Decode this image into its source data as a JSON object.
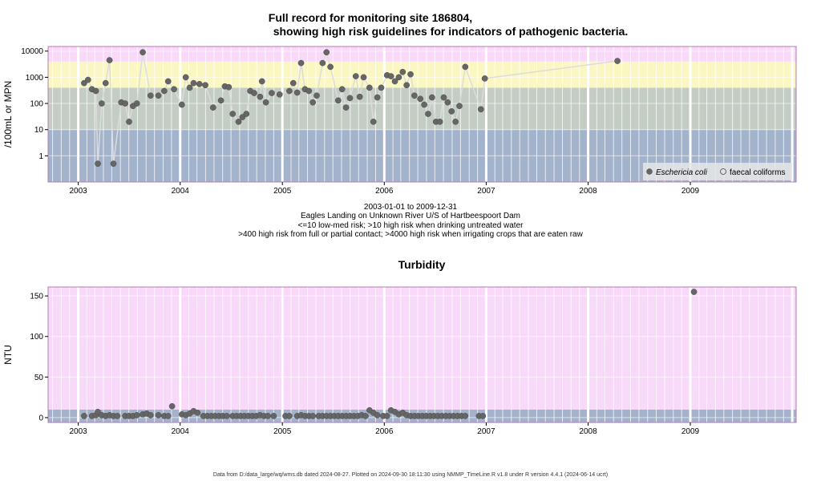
{
  "titles": {
    "main_line1": "Full record for monitoring site 186804,",
    "main_line2": "showing high risk guidelines for indicators of pathogenic bacteria.",
    "turbidity": "Turbidity"
  },
  "captions": {
    "line1": "2003-01-01 to 2009-12-31",
    "line2": "Eagles Landing on Unknown River U/S of Hartbeespoort Dam",
    "line3": "<=10 low-med risk; >10 high risk when drinking untreated water",
    "line4": ">400 high risk from full or partial contact; >4000 high risk when irrigating crops that are eaten raw"
  },
  "footer": "Data from D:/data_large/wq/wms.db dated 2024-08-27. Plotted on 2024-09-30 18:11:30 using NMMP_TimeLine.R v1.8 under R version 4.4.1 (2024-06-14 ucrt)",
  "colors": {
    "band_low": "#a3b3cc",
    "band_med": "#c3cdc3",
    "band_high": "#fbf7c3",
    "band_vhigh": "#f9d9f9",
    "turb_bg": "#f9d9f9",
    "turb_low": "#a3b3cc",
    "point": "#666666",
    "line": "#dcdcdc"
  },
  "chart_data": [
    {
      "type": "scatter",
      "ylabel": "/100mL or MPN",
      "yscale": "log",
      "ylim": [
        0.1,
        15000
      ],
      "xlim": [
        "2002-09-15",
        "2010-01-15"
      ],
      "y_ticks": [
        1,
        10,
        100,
        1000,
        10000
      ],
      "y_tick_labels": [
        "1",
        "10",
        "100",
        "1000",
        "10000"
      ],
      "x_ticks": [
        "2003-01-01",
        "2004-01-01",
        "2005-01-01",
        "2006-01-01",
        "2007-01-01",
        "2008-01-01",
        "2009-01-01"
      ],
      "x_tick_labels": [
        "2003",
        "2004",
        "2005",
        "2006",
        "2007",
        "2008",
        "2009"
      ],
      "bands": [
        {
          "from": 0.1,
          "to": 10,
          "color": "#a3b3cc"
        },
        {
          "from": 10,
          "to": 400,
          "color": "#c3cdc3"
        },
        {
          "from": 400,
          "to": 4000,
          "color": "#fbf7c3"
        },
        {
          "from": 4000,
          "to": 15000,
          "color": "#f9d9f9"
        }
      ],
      "legend": {
        "position": "bottom-right",
        "entries": [
          "Eschericia coli",
          "faecal coliforms"
        ]
      },
      "series": [
        {
          "name": "Eschericia coli",
          "points": [
            [
              "2003-01-22",
              600
            ],
            [
              "2003-02-05",
              800
            ],
            [
              "2003-02-19",
              350
            ],
            [
              "2003-03-05",
              300
            ],
            [
              "2003-03-12",
              0.5
            ],
            [
              "2003-03-26",
              100
            ],
            [
              "2003-04-09",
              600
            ],
            [
              "2003-04-23",
              4500
            ],
            [
              "2003-05-07",
              0.5
            ],
            [
              "2003-06-04",
              110
            ],
            [
              "2003-06-18",
              100
            ],
            [
              "2003-07-02",
              20
            ],
            [
              "2003-07-16",
              80
            ],
            [
              "2003-07-30",
              100
            ],
            [
              "2003-08-20",
              9000
            ],
            [
              "2003-09-17",
              200
            ],
            [
              "2003-10-15",
              200
            ],
            [
              "2003-11-05",
              300
            ],
            [
              "2003-11-19",
              700
            ],
            [
              "2003-12-10",
              350
            ],
            [
              "2004-01-07",
              90
            ],
            [
              "2004-01-21",
              1000
            ],
            [
              "2004-02-04",
              400
            ],
            [
              "2004-02-18",
              600
            ],
            [
              "2004-03-10",
              550
            ],
            [
              "2004-03-31",
              500
            ],
            [
              "2004-04-28",
              70
            ],
            [
              "2004-05-26",
              130
            ],
            [
              "2004-06-09",
              450
            ],
            [
              "2004-06-23",
              420
            ],
            [
              "2004-07-07",
              40
            ],
            [
              "2004-07-28",
              20
            ],
            [
              "2004-08-11",
              30
            ],
            [
              "2004-08-25",
              40
            ],
            [
              "2004-09-08",
              300
            ],
            [
              "2004-09-22",
              250
            ],
            [
              "2004-10-13",
              180
            ],
            [
              "2004-10-20",
              700
            ],
            [
              "2004-11-03",
              110
            ],
            [
              "2004-11-24",
              250
            ],
            [
              "2004-12-22",
              220
            ],
            [
              "2005-01-26",
              300
            ],
            [
              "2005-02-09",
              600
            ],
            [
              "2005-02-23",
              260
            ],
            [
              "2005-03-09",
              3500
            ],
            [
              "2005-03-23",
              350
            ],
            [
              "2005-04-06",
              300
            ],
            [
              "2005-04-20",
              110
            ],
            [
              "2005-05-04",
              200
            ],
            [
              "2005-05-25",
              3500
            ],
            [
              "2005-06-08",
              9000
            ],
            [
              "2005-06-22",
              2500
            ],
            [
              "2005-07-20",
              130
            ],
            [
              "2005-08-03",
              350
            ],
            [
              "2005-08-17",
              70
            ],
            [
              "2005-08-31",
              160
            ],
            [
              "2005-09-21",
              1100
            ],
            [
              "2005-10-05",
              180
            ],
            [
              "2005-10-19",
              1000
            ],
            [
              "2005-11-09",
              400
            ],
            [
              "2005-11-23",
              20
            ],
            [
              "2005-12-07",
              170
            ],
            [
              "2005-12-21",
              400
            ],
            [
              "2006-01-11",
              1200
            ],
            [
              "2006-01-25",
              1100
            ],
            [
              "2006-02-08",
              700
            ],
            [
              "2006-02-22",
              1000
            ],
            [
              "2006-03-08",
              1600
            ],
            [
              "2006-03-22",
              500
            ],
            [
              "2006-04-05",
              1300
            ],
            [
              "2006-04-19",
              200
            ],
            [
              "2006-05-10",
              150
            ],
            [
              "2006-05-24",
              90
            ],
            [
              "2006-06-07",
              40
            ],
            [
              "2006-06-21",
              170
            ],
            [
              "2006-07-05",
              20
            ],
            [
              "2006-07-19",
              20
            ],
            [
              "2006-08-02",
              170
            ],
            [
              "2006-08-16",
              110
            ],
            [
              "2006-08-30",
              50
            ],
            [
              "2006-09-13",
              20
            ],
            [
              "2006-09-27",
              80
            ],
            [
              "2006-10-18",
              2500
            ],
            [
              "2006-12-13",
              60
            ],
            [
              "2006-12-27",
              900
            ],
            [
              "2008-04-15",
              4200
            ]
          ]
        },
        {
          "name": "faecal coliforms",
          "points": []
        }
      ]
    },
    {
      "type": "scatter",
      "title": "Turbidity",
      "ylabel": "NTU",
      "ylim": [
        -6,
        161
      ],
      "xlim": [
        "2002-09-15",
        "2010-01-15"
      ],
      "y_ticks": [
        0,
        50,
        100,
        150
      ],
      "y_tick_labels": [
        "0",
        "50",
        "100",
        "150"
      ],
      "x_ticks": [
        "2003-01-01",
        "2004-01-01",
        "2005-01-01",
        "2006-01-01",
        "2007-01-01",
        "2008-01-01",
        "2009-01-01"
      ],
      "x_tick_labels": [
        "2003",
        "2004",
        "2005",
        "2006",
        "2007",
        "2008",
        "2009"
      ],
      "bands": [
        {
          "from": -6,
          "to": 10,
          "color": "#a3b3cc"
        },
        {
          "from": 10,
          "to": 161,
          "color": "#f9d9f9"
        }
      ],
      "series": [
        {
          "name": "Turbidity",
          "points": [
            [
              "2003-01-22",
              2
            ],
            [
              "2003-02-19",
              2
            ],
            [
              "2003-03-05",
              3
            ],
            [
              "2003-03-12",
              7
            ],
            [
              "2003-03-26",
              3
            ],
            [
              "2003-04-09",
              2
            ],
            [
              "2003-04-23",
              3
            ],
            [
              "2003-05-07",
              2
            ],
            [
              "2003-05-21",
              2
            ],
            [
              "2003-06-18",
              2
            ],
            [
              "2003-07-02",
              2
            ],
            [
              "2003-07-16",
              2
            ],
            [
              "2003-07-30",
              3
            ],
            [
              "2003-08-20",
              4
            ],
            [
              "2003-09-03",
              5
            ],
            [
              "2003-09-17",
              3
            ],
            [
              "2003-10-15",
              3
            ],
            [
              "2003-11-05",
              2
            ],
            [
              "2003-11-19",
              2
            ],
            [
              "2003-12-03",
              14
            ],
            [
              "2004-01-07",
              4
            ],
            [
              "2004-01-21",
              3
            ],
            [
              "2004-02-04",
              5
            ],
            [
              "2004-02-18",
              8
            ],
            [
              "2004-03-03",
              6
            ],
            [
              "2004-03-24",
              2
            ],
            [
              "2004-04-07",
              2
            ],
            [
              "2004-04-21",
              2
            ],
            [
              "2004-05-05",
              2
            ],
            [
              "2004-05-19",
              2
            ],
            [
              "2004-06-02",
              2
            ],
            [
              "2004-06-16",
              2
            ],
            [
              "2004-07-07",
              2
            ],
            [
              "2004-07-21",
              2
            ],
            [
              "2004-08-04",
              2
            ],
            [
              "2004-08-18",
              2
            ],
            [
              "2004-09-01",
              2
            ],
            [
              "2004-09-15",
              2
            ],
            [
              "2004-09-29",
              2
            ],
            [
              "2004-10-13",
              3
            ],
            [
              "2004-10-27",
              2
            ],
            [
              "2004-11-10",
              2
            ],
            [
              "2004-12-01",
              2
            ],
            [
              "2005-01-12",
              2
            ],
            [
              "2005-01-26",
              2
            ],
            [
              "2005-02-23",
              2
            ],
            [
              "2005-03-09",
              3
            ],
            [
              "2005-03-23",
              2
            ],
            [
              "2005-04-06",
              2
            ],
            [
              "2005-04-20",
              2
            ],
            [
              "2005-05-11",
              2
            ],
            [
              "2005-05-25",
              2
            ],
            [
              "2005-06-08",
              2
            ],
            [
              "2005-06-22",
              2
            ],
            [
              "2005-07-06",
              2
            ],
            [
              "2005-07-20",
              2
            ],
            [
              "2005-08-03",
              2
            ],
            [
              "2005-08-17",
              2
            ],
            [
              "2005-08-31",
              2
            ],
            [
              "2005-09-14",
              2
            ],
            [
              "2005-09-28",
              2
            ],
            [
              "2005-10-12",
              3
            ],
            [
              "2005-10-26",
              2
            ],
            [
              "2005-11-09",
              9
            ],
            [
              "2005-11-23",
              6
            ],
            [
              "2005-12-07",
              3
            ],
            [
              "2005-12-28",
              2
            ],
            [
              "2006-01-11",
              2
            ],
            [
              "2006-01-25",
              9
            ],
            [
              "2006-02-08",
              7
            ],
            [
              "2006-02-22",
              4
            ],
            [
              "2006-03-08",
              6
            ],
            [
              "2006-03-22",
              3
            ],
            [
              "2006-04-05",
              2
            ],
            [
              "2006-04-19",
              2
            ],
            [
              "2006-05-03",
              2
            ],
            [
              "2006-05-17",
              2
            ],
            [
              "2006-05-31",
              2
            ],
            [
              "2006-06-14",
              2
            ],
            [
              "2006-06-28",
              2
            ],
            [
              "2006-07-12",
              2
            ],
            [
              "2006-07-26",
              2
            ],
            [
              "2006-08-09",
              2
            ],
            [
              "2006-08-23",
              2
            ],
            [
              "2006-09-06",
              2
            ],
            [
              "2006-09-20",
              2
            ],
            [
              "2006-10-04",
              2
            ],
            [
              "2006-10-18",
              2
            ],
            [
              "2006-12-06",
              2
            ],
            [
              "2006-12-20",
              2
            ],
            [
              "2009-01-14",
              155
            ]
          ]
        }
      ]
    }
  ]
}
